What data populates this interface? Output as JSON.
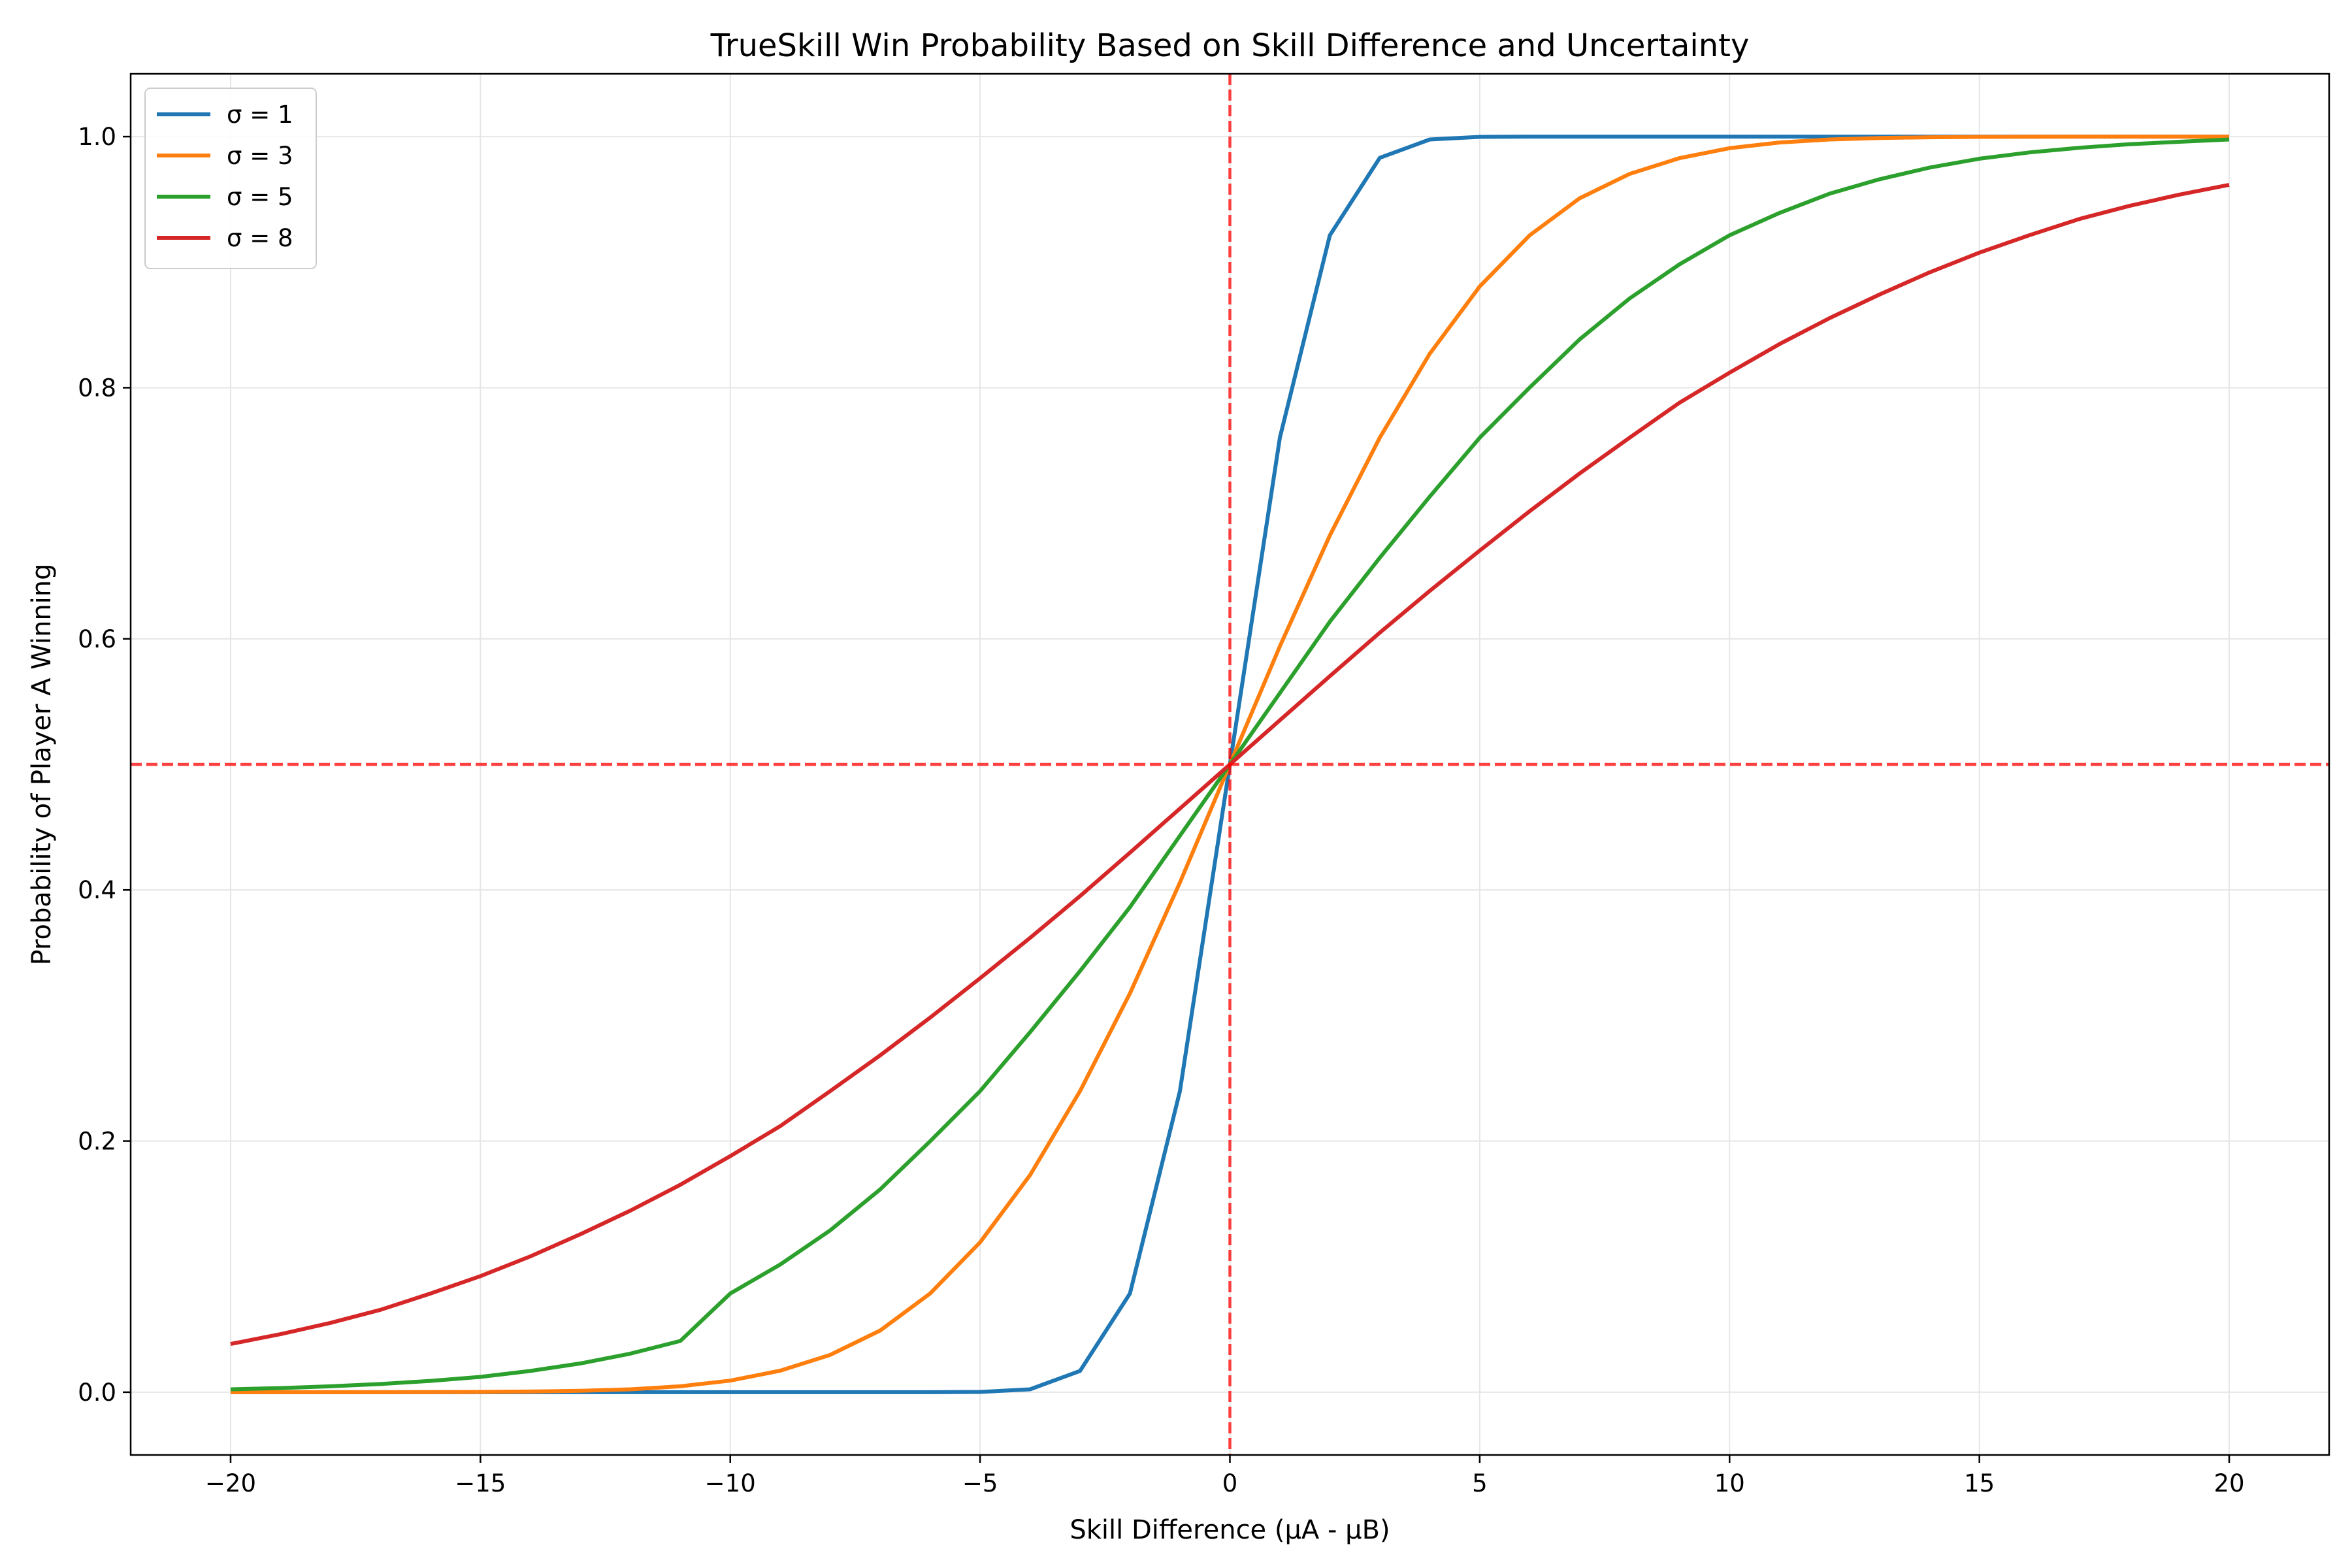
{
  "chart_data": {
    "type": "line",
    "title": "TrueSkill Win Probability Based on Skill Difference and Uncertainty",
    "xlabel": "Skill Difference (μA - μB)",
    "ylabel": "Probability of Player A Winning",
    "xlim": [
      -22,
      22
    ],
    "ylim": [
      -0.05,
      1.05
    ],
    "x_ticks": [
      -20,
      -15,
      -10,
      -5,
      0,
      5,
      10,
      15,
      20
    ],
    "x_tick_labels": [
      "−20",
      "−15",
      "−10",
      "−5",
      "0",
      "5",
      "10",
      "15",
      "20"
    ],
    "y_ticks": [
      0.0,
      0.2,
      0.4,
      0.6,
      0.8,
      1.0
    ],
    "y_tick_labels": [
      "0.0",
      "0.2",
      "0.4",
      "0.6",
      "0.8",
      "1.0"
    ],
    "grid": true,
    "legend_position": "top-left",
    "reference_lines": [
      {
        "orientation": "vertical",
        "value": 0,
        "color": "#ff0000",
        "style": "dashed"
      },
      {
        "orientation": "horizontal",
        "value": 0.5,
        "color": "#ff0000",
        "style": "dashed"
      }
    ],
    "x": [
      -20,
      -19,
      -18,
      -17,
      -16,
      -15,
      -14,
      -13,
      -12,
      -11,
      -10,
      -9,
      -8,
      -7,
      -6,
      -5,
      -4,
      -3,
      -2,
      -1,
      0,
      1,
      2,
      3,
      4,
      5,
      6,
      7,
      8,
      9,
      10,
      11,
      12,
      13,
      14,
      15,
      16,
      17,
      18,
      19,
      20
    ],
    "series": [
      {
        "name": "σ = 1",
        "color": "#1f77b4",
        "values": [
          0,
          0,
          0,
          0,
          0,
          0,
          0,
          0,
          0,
          0,
          0,
          0,
          0,
          0,
          0,
          0.0002,
          0.0023,
          0.0169,
          0.0786,
          0.2398,
          0.5,
          0.7602,
          0.9214,
          0.9831,
          0.9977,
          0.9998,
          1,
          1,
          1,
          1,
          1,
          1,
          1,
          1,
          1,
          1,
          1,
          1,
          1,
          1,
          1
        ]
      },
      {
        "name": "σ = 3",
        "color": "#ff7f0e",
        "values": [
          0,
          0,
          0,
          0,
          0.0001,
          0.0002,
          0.0005,
          0.0011,
          0.0023,
          0.0047,
          0.0092,
          0.0171,
          0.0297,
          0.0491,
          0.0786,
          0.1193,
          0.1729,
          0.2398,
          0.3176,
          0.4059,
          0.5,
          0.5941,
          0.6824,
          0.7602,
          0.8271,
          0.8807,
          0.9214,
          0.9509,
          0.9703,
          0.9829,
          0.9908,
          0.9953,
          0.9977,
          0.9989,
          0.9995,
          0.9998,
          0.9999,
          1,
          1,
          1,
          1
        ]
      },
      {
        "name": "σ = 5",
        "color": "#2ca02c",
        "values": [
          0.0023,
          0.0033,
          0.0047,
          0.0065,
          0.009,
          0.0122,
          0.0169,
          0.0229,
          0.0307,
          0.0408,
          0.0786,
          0.1017,
          0.1289,
          0.1615,
          0.1998,
          0.2398,
          0.2867,
          0.3354,
          0.3863,
          0.4432,
          0.5,
          0.5568,
          0.6137,
          0.6646,
          0.7133,
          0.7602,
          0.8002,
          0.8385,
          0.8711,
          0.8983,
          0.9214,
          0.9392,
          0.9545,
          0.966,
          0.9753,
          0.9824,
          0.9874,
          0.9911,
          0.9939,
          0.9959,
          0.9977
        ]
      },
      {
        "name": "σ = 8",
        "color": "#d62728",
        "values": [
          0.0384,
          0.0462,
          0.0552,
          0.0656,
          0.0786,
          0.0924,
          0.1082,
          0.1258,
          0.1446,
          0.1652,
          0.188,
          0.2119,
          0.2398,
          0.2683,
          0.2983,
          0.3297,
          0.3618,
          0.3951,
          0.4297,
          0.4648,
          0.5,
          0.5352,
          0.5703,
          0.6049,
          0.6382,
          0.6703,
          0.7017,
          0.7317,
          0.7602,
          0.7881,
          0.812,
          0.8348,
          0.8554,
          0.8742,
          0.8918,
          0.9076,
          0.9214,
          0.9344,
          0.9448,
          0.9538,
          0.9616
        ]
      }
    ]
  }
}
